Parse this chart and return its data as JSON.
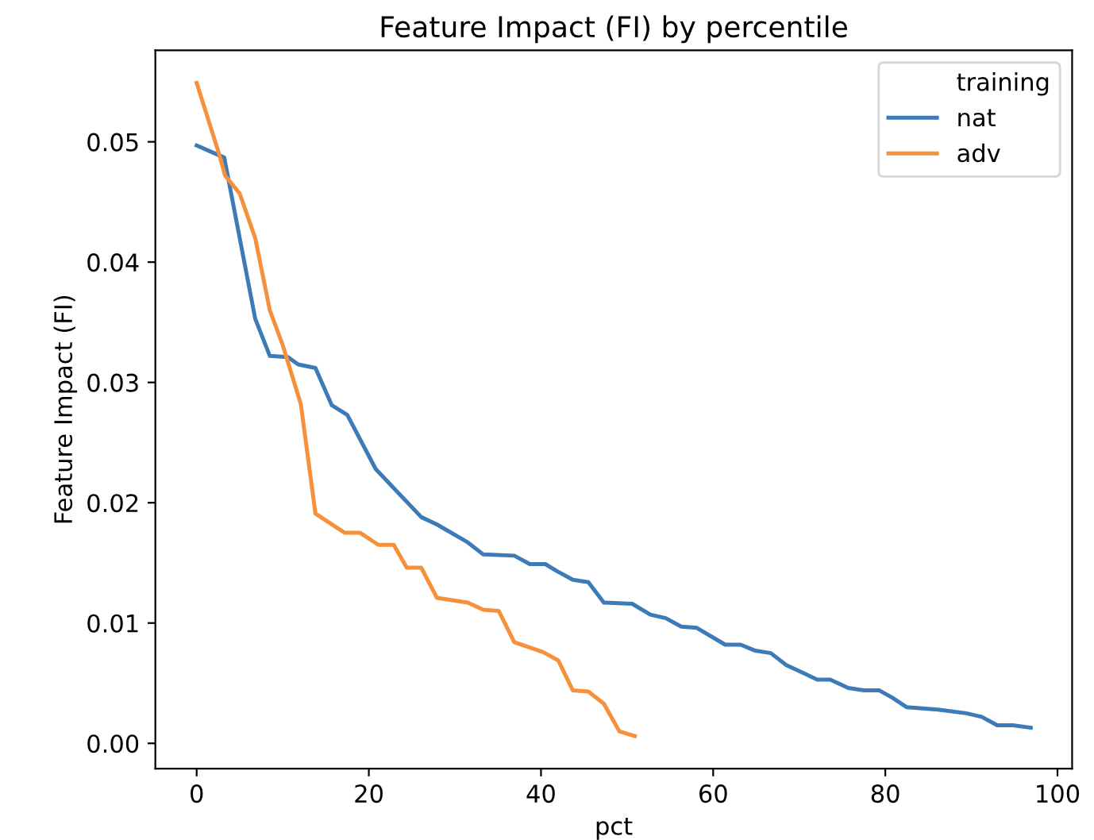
{
  "chart_data": {
    "type": "line",
    "title": "Feature Impact (FI) by percentile",
    "xlabel": "pct",
    "ylabel": "Feature Impact (FI)",
    "legend_title": "training",
    "legend": "top right",
    "grid": false,
    "line_style": "solid",
    "marker": "none",
    "xlim": [
      -4.8,
      101.7
    ],
    "xticks": [
      0,
      20,
      40,
      60,
      80,
      100
    ],
    "ylim": [
      -0.0021,
      0.0576
    ],
    "yticks": [
      {
        "value": 0,
        "label": "0.00"
      },
      {
        "value": 0.01,
        "label": "0.01"
      },
      {
        "value": 0.02,
        "label": "0.02"
      },
      {
        "value": 0.03,
        "label": "0.03"
      },
      {
        "value": 0.04,
        "label": "0.04"
      },
      {
        "value": 0.05,
        "label": "0.05"
      }
    ],
    "series": [
      {
        "name": "nat",
        "color": "#3d7ab8",
        "x": [
          0,
          3.2,
          6.8,
          8.5,
          10.6,
          11.8,
          13.8,
          15.7,
          17.5,
          20.8,
          26.1,
          27.9,
          31.5,
          33.3,
          36.9,
          38.7,
          40.5,
          41.9,
          43.7,
          45.5,
          47.3,
          50.6,
          52.7,
          54.5,
          56.3,
          58.1,
          61.4,
          63.2,
          64.9,
          66.7,
          68.5,
          72.1,
          73.6,
          75.7,
          77.5,
          79.3,
          80.8,
          82.5,
          86.1,
          89.4,
          91.2,
          93,
          94.8,
          96.9
        ],
        "values": [
          0.0497,
          0.0487,
          0.0353,
          0.0322,
          0.0321,
          0.0315,
          0.0312,
          0.0281,
          0.0273,
          0.0228,
          0.0188,
          0.0182,
          0.0167,
          0.0157,
          0.0156,
          0.0149,
          0.0149,
          0.0143,
          0.0136,
          0.0134,
          0.0117,
          0.0116,
          0.0107,
          0.0104,
          0.0097,
          0.0096,
          0.0082,
          0.0082,
          0.0077,
          0.0075,
          0.0065,
          0.0053,
          0.0053,
          0.0046,
          0.0044,
          0.0044,
          0.0038,
          0.003,
          0.0028,
          0.0025,
          0.0022,
          0.0015,
          0.0015,
          0.0013
        ]
      },
      {
        "name": "adv",
        "color": "#f5913d",
        "x": [
          0,
          2.6,
          3.3,
          5.0,
          6.8,
          8.5,
          10.0,
          12.1,
          13.8,
          17.2,
          19,
          21.1,
          22.9,
          24.4,
          26.1,
          27.9,
          31.5,
          33.3,
          35.1,
          36.9,
          40.2,
          42,
          43.7,
          45.5,
          47.3,
          49.1,
          50.9
        ],
        "values": [
          0.0549,
          0.049,
          0.0472,
          0.0457,
          0.042,
          0.036,
          0.0331,
          0.0282,
          0.0191,
          0.0175,
          0.0175,
          0.0165,
          0.0165,
          0.0146,
          0.0146,
          0.0121,
          0.0117,
          0.0111,
          0.011,
          0.0084,
          0.0076,
          0.0069,
          0.0044,
          0.0043,
          0.0033,
          0.001,
          0.0006
        ]
      }
    ]
  }
}
